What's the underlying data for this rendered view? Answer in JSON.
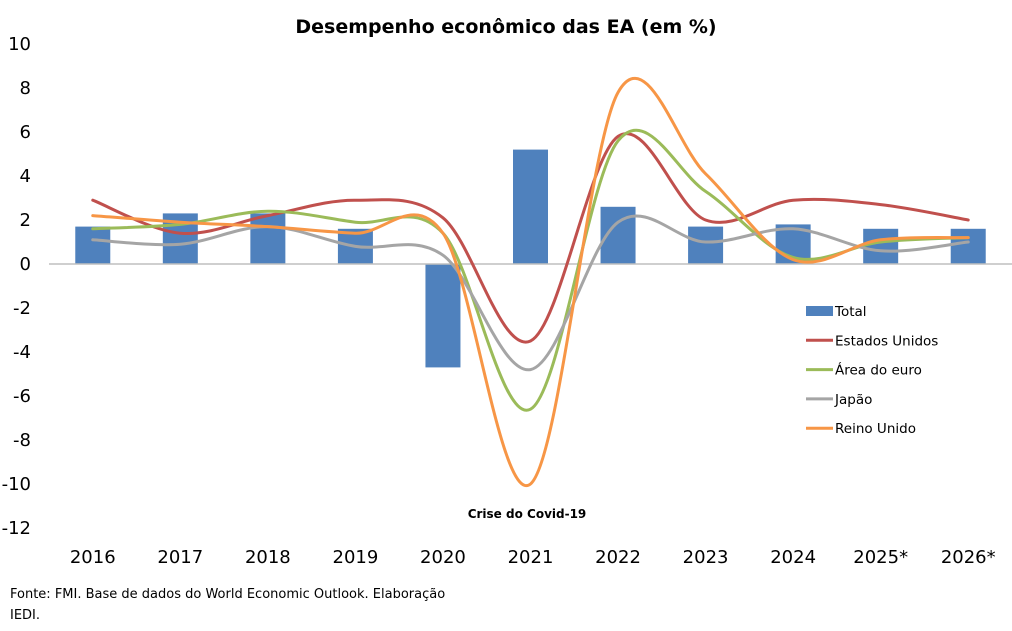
{
  "chart_data": {
    "type": "bar+line",
    "title": "Desempenho econômico das EA (em %)",
    "xlabel": "",
    "ylabel": "",
    "ylim": [
      -12,
      10
    ],
    "yticks": [
      10,
      8,
      6,
      4,
      2,
      0,
      -2,
      -4,
      -6,
      -8,
      -10,
      -12
    ],
    "grid": false,
    "legend_position": "right",
    "categories": [
      "2016",
      "2017",
      "2018",
      "2019",
      "2020",
      "2021",
      "2022",
      "2023",
      "2024",
      "2025*",
      "2026*"
    ],
    "series": [
      {
        "name": "Total",
        "kind": "bar",
        "color": "#4F81BD",
        "values": [
          1.7,
          2.3,
          2.3,
          1.6,
          -4.7,
          5.2,
          2.6,
          1.7,
          1.8,
          1.6,
          1.6
        ]
      },
      {
        "name": "Estados Unidos",
        "kind": "line",
        "color": "#C0504D",
        "values": [
          2.9,
          1.4,
          2.2,
          2.9,
          2.1,
          -3.5,
          5.8,
          2.0,
          2.9,
          2.7,
          2.0
        ]
      },
      {
        "name": "Área do euro",
        "kind": "line",
        "color": "#9BBB59",
        "values": [
          1.6,
          1.8,
          2.4,
          1.9,
          1.4,
          -6.6,
          5.6,
          3.3,
          0.3,
          1.0,
          1.2
        ]
      },
      {
        "name": "Japão",
        "kind": "line",
        "color": "#A5A5A5",
        "values": [
          1.1,
          0.9,
          1.7,
          0.8,
          0.4,
          -4.8,
          1.9,
          1.0,
          1.6,
          0.6,
          1.0
        ]
      },
      {
        "name": "Reino Unido",
        "kind": "line",
        "color": "#F79646",
        "values": [
          2.2,
          1.9,
          1.7,
          1.4,
          1.4,
          -10.0,
          7.8,
          4.1,
          0.2,
          1.1,
          1.2
        ]
      }
    ],
    "annotations": [
      {
        "text": "Crise do Covid-19",
        "near_category": "2021"
      }
    ]
  },
  "footer": {
    "source": "Fonte: FMI. Base de dados do World Economic Outlook. Elaboração IEDI."
  }
}
